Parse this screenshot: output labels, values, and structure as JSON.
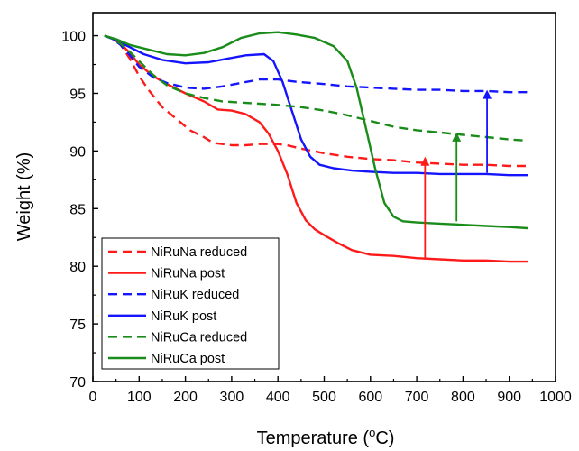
{
  "chart_data": {
    "type": "line",
    "title": "",
    "xlabel": "Temperature (",
    "xlabel_sup": "o",
    "xlabel_suffix": "C)",
    "ylabel": "Weight (%)",
    "xlim": [
      0,
      1000
    ],
    "ylim": [
      70,
      102
    ],
    "x_ticks": [
      0,
      100,
      200,
      300,
      400,
      500,
      600,
      700,
      800,
      900,
      1000
    ],
    "y_ticks": [
      70,
      75,
      80,
      85,
      90,
      95,
      100
    ],
    "grid": false,
    "legend_position": "bottom-left",
    "series": [
      {
        "name": "NiRuNa reduced",
        "color": "#ff1a1a",
        "dash": "dashed",
        "x": [
          25,
          40,
          60,
          80,
          100,
          120,
          150,
          180,
          210,
          240,
          260,
          280,
          300,
          330,
          360,
          400,
          420,
          450,
          500,
          550,
          600,
          650,
          700,
          750,
          800,
          850,
          900,
          940
        ],
        "y": [
          100,
          99.8,
          99.2,
          98,
          96.5,
          95.3,
          93.8,
          92.8,
          91.8,
          91.2,
          90.7,
          90.6,
          90.5,
          90.5,
          90.6,
          90.6,
          90.5,
          90.2,
          89.8,
          89.5,
          89.3,
          89.2,
          89.0,
          88.9,
          88.8,
          88.8,
          88.7,
          88.7
        ]
      },
      {
        "name": "NiRuNa post",
        "color": "#ff1a1a",
        "dash": "solid",
        "x": [
          25,
          40,
          60,
          80,
          100,
          130,
          160,
          200,
          240,
          270,
          300,
          330,
          360,
          380,
          400,
          420,
          440,
          460,
          480,
          500,
          530,
          560,
          600,
          650,
          700,
          750,
          800,
          850,
          900,
          940
        ],
        "y": [
          100,
          99.8,
          99.3,
          98.5,
          97.5,
          96.5,
          95.8,
          95.0,
          94.3,
          93.6,
          93.5,
          93.2,
          92.5,
          91.5,
          90.0,
          88.0,
          85.5,
          84.0,
          83.2,
          82.7,
          82.0,
          81.4,
          81.0,
          80.9,
          80.7,
          80.6,
          80.5,
          80.5,
          80.4,
          80.4
        ]
      },
      {
        "name": "NiRuK reduced",
        "color": "#1414ff",
        "dash": "dashed",
        "x": [
          25,
          40,
          60,
          80,
          100,
          130,
          160,
          200,
          240,
          280,
          320,
          360,
          400,
          440,
          500,
          550,
          600,
          650,
          700,
          750,
          800,
          850,
          900,
          940
        ],
        "y": [
          100,
          99.8,
          99.2,
          98.3,
          97.3,
          96.4,
          95.9,
          95.5,
          95.4,
          95.6,
          95.9,
          96.2,
          96.2,
          96.0,
          95.8,
          95.6,
          95.5,
          95.4,
          95.3,
          95.3,
          95.2,
          95.2,
          95.1,
          95.1
        ]
      },
      {
        "name": "NiRuK post",
        "color": "#1414ff",
        "dash": "solid",
        "x": [
          25,
          50,
          80,
          110,
          150,
          200,
          250,
          290,
          330,
          370,
          390,
          410,
          430,
          450,
          470,
          490,
          520,
          560,
          600,
          650,
          700,
          750,
          800,
          850,
          900,
          940
        ],
        "y": [
          100,
          99.6,
          99.0,
          98.4,
          97.9,
          97.6,
          97.7,
          98.0,
          98.3,
          98.4,
          97.8,
          96.0,
          93.5,
          91.0,
          89.5,
          88.8,
          88.5,
          88.3,
          88.2,
          88.1,
          88.1,
          88.0,
          88.0,
          88.0,
          87.9,
          87.9
        ]
      },
      {
        "name": "NiRuCa reduced",
        "color": "#1a8c1a",
        "dash": "dashed",
        "x": [
          25,
          40,
          60,
          80,
          100,
          130,
          160,
          200,
          240,
          280,
          320,
          360,
          400,
          450,
          500,
          550,
          600,
          650,
          700,
          750,
          800,
          850,
          900,
          940
        ],
        "y": [
          100,
          99.8,
          99.3,
          98.6,
          97.8,
          96.6,
          95.7,
          95.0,
          94.6,
          94.3,
          94.2,
          94.1,
          94.0,
          93.8,
          93.5,
          93.1,
          92.6,
          92.1,
          91.8,
          91.6,
          91.4,
          91.2,
          91.0,
          90.9
        ]
      },
      {
        "name": "NiRuCa post",
        "color": "#1a8c1a",
        "dash": "solid",
        "x": [
          25,
          50,
          80,
          120,
          160,
          200,
          240,
          280,
          320,
          360,
          400,
          440,
          480,
          520,
          550,
          570,
          590,
          610,
          630,
          650,
          670,
          700,
          750,
          800,
          850,
          900,
          940
        ],
        "y": [
          100,
          99.7,
          99.2,
          98.8,
          98.4,
          98.3,
          98.5,
          99.0,
          99.8,
          100.2,
          100.3,
          100.1,
          99.8,
          99.1,
          97.8,
          95.5,
          92.0,
          88.5,
          85.5,
          84.3,
          83.9,
          83.8,
          83.7,
          83.6,
          83.5,
          83.4,
          83.3
        ]
      }
    ],
    "annotations": [
      {
        "type": "arrow",
        "color": "#ff1a1a",
        "x": 718,
        "y_from": 80.7,
        "y_to": 89.5
      },
      {
        "type": "arrow",
        "color": "#1a8c1a",
        "x": 786,
        "y_from": 83.9,
        "y_to": 91.6
      },
      {
        "type": "arrow",
        "color": "#1414ff",
        "x": 852,
        "y_from": 88.1,
        "y_to": 95.3
      }
    ]
  }
}
